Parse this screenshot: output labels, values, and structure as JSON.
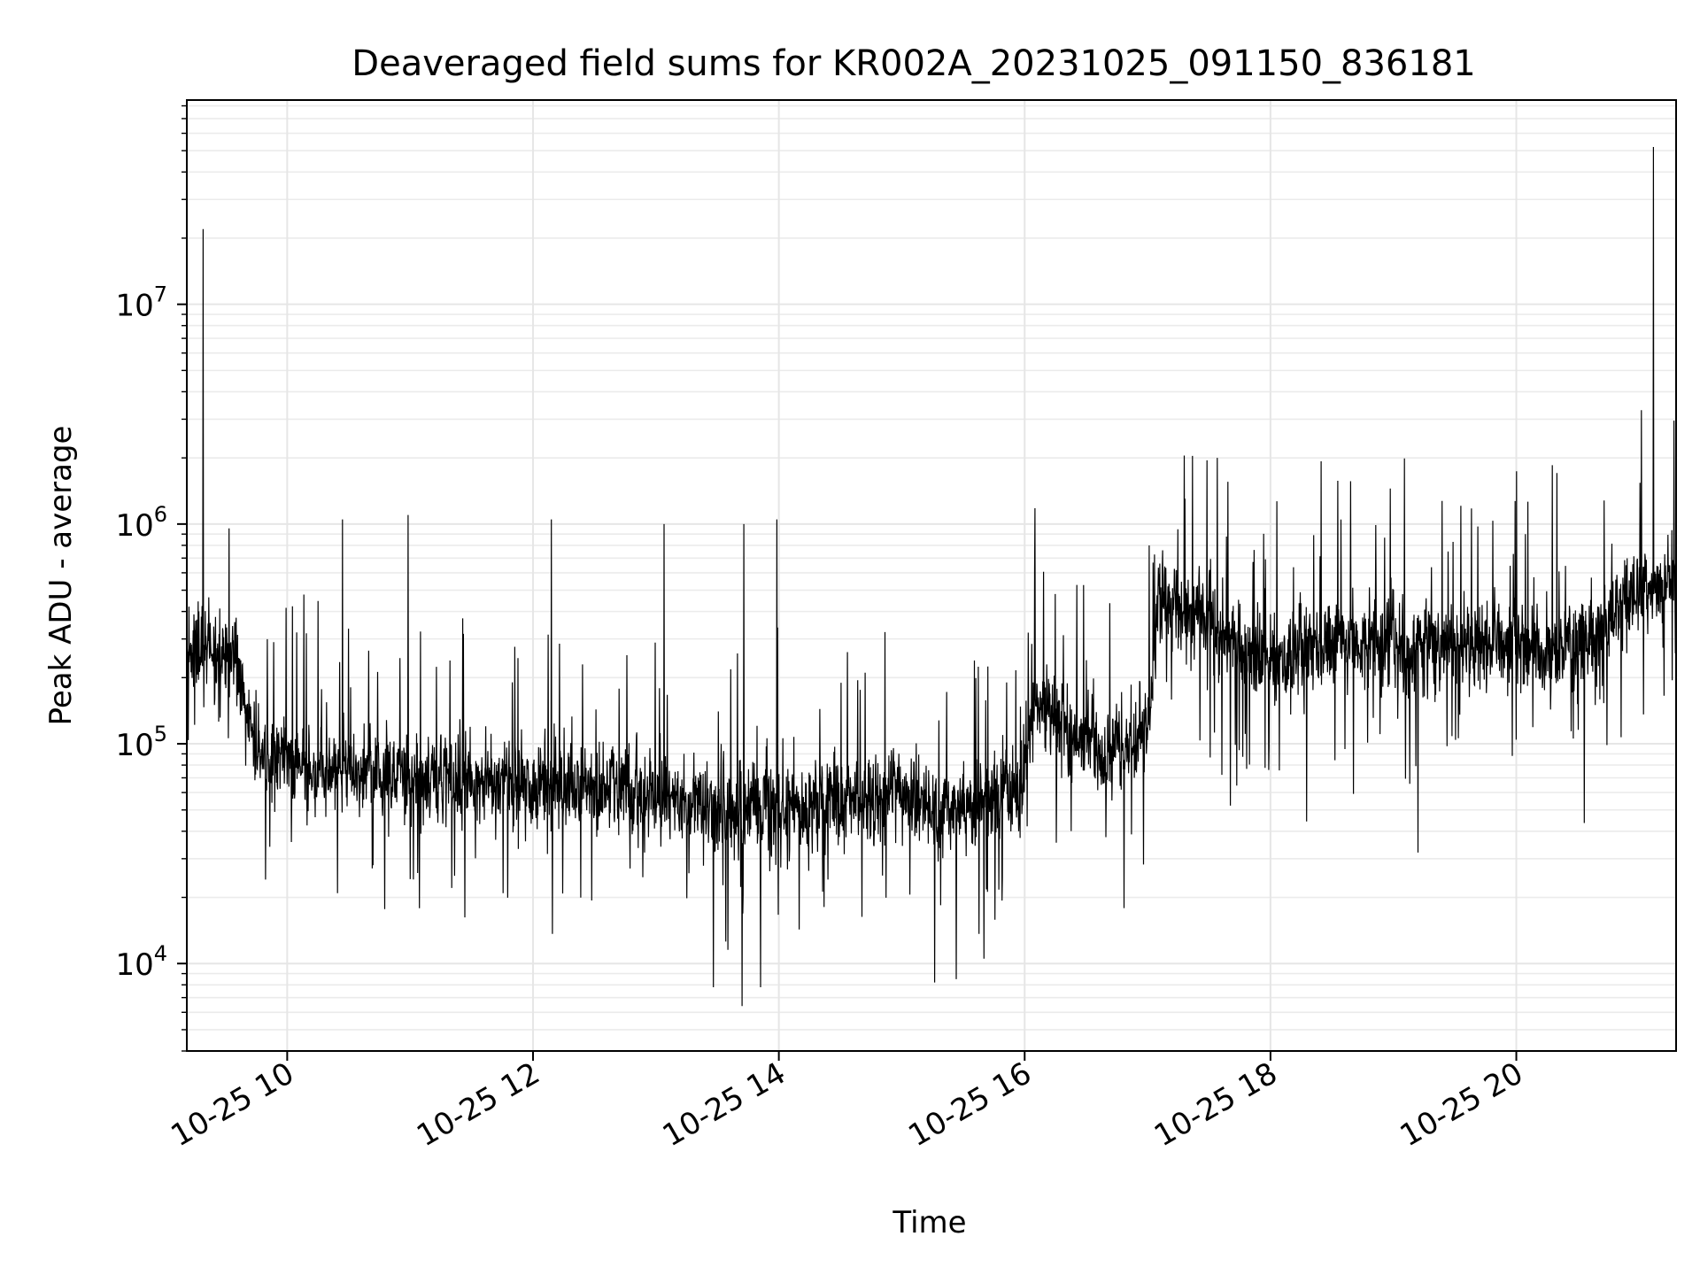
{
  "chart_data": {
    "type": "line",
    "title": "Deaveraged field sums for KR002A_20231025_091150_836181",
    "xlabel": "Time",
    "ylabel": "Peak ADU - average",
    "yscale": "log",
    "ylim": [
      4000,
      85000000
    ],
    "xlim": [
      "2023-10-25 09:11",
      "2023-10-25 21:18"
    ],
    "x_ticks": [
      {
        "value": "2023-10-25 10:00",
        "label": "10-25 10"
      },
      {
        "value": "2023-10-25 12:00",
        "label": "10-25 12"
      },
      {
        "value": "2023-10-25 14:00",
        "label": "10-25 14"
      },
      {
        "value": "2023-10-25 16:00",
        "label": "10-25 16"
      },
      {
        "value": "2023-10-25 18:00",
        "label": "10-25 18"
      },
      {
        "value": "2023-10-25 20:00",
        "label": "10-25 20"
      }
    ],
    "y_ticks": [
      {
        "value": 10000,
        "base": "10",
        "exp": "4"
      },
      {
        "value": 100000,
        "base": "10",
        "exp": "5"
      },
      {
        "value": 1000000,
        "base": "10",
        "exp": "6"
      },
      {
        "value": 10000000,
        "base": "10",
        "exp": "7"
      }
    ],
    "grid": true,
    "line_color": "#000000",
    "series": [
      {
        "baseline_x": [
          "2023-10-25 09:11",
          "2023-10-25 09:35",
          "2023-10-25 09:45",
          "2023-10-25 10:30",
          "2023-10-25 11:30",
          "2023-10-25 12:30",
          "2023-10-25 13:00",
          "2023-10-25 13:40",
          "2023-10-25 14:30",
          "2023-10-25 15:00",
          "2023-10-25 15:20",
          "2023-10-25 15:58",
          "2023-10-25 16:05",
          "2023-10-25 16:40",
          "2023-10-25 17:00",
          "2023-10-25 17:05",
          "2023-10-25 17:40",
          "2023-10-25 17:55",
          "2023-10-25 18:30",
          "2023-10-25 19:30",
          "2023-10-25 20:30",
          "2023-10-25 20:55",
          "2023-10-25 21:18"
        ],
        "baseline_y": [
          280000,
          250000,
          90000,
          75000,
          68000,
          62000,
          58000,
          50000,
          55000,
          60000,
          50000,
          60000,
          150000,
          90000,
          110000,
          450000,
          300000,
          230000,
          290000,
          280000,
          260000,
          480000,
          560000
        ],
        "spikes": [
          {
            "x": "2023-10-25 09:19",
            "y": 22000000
          },
          {
            "x": "2023-10-25 10:27",
            "y": 1050000
          },
          {
            "x": "2023-10-25 10:59",
            "y": 1100000
          },
          {
            "x": "2023-10-25 12:09",
            "y": 1050000
          },
          {
            "x": "2023-10-25 13:04",
            "y": 1000000
          },
          {
            "x": "2023-10-25 13:43",
            "y": 1000000
          },
          {
            "x": "2023-10-25 13:59",
            "y": 1050000
          },
          {
            "x": "2023-10-25 16:05",
            "y": 1180000
          },
          {
            "x": "2023-10-25 17:18",
            "y": 2050000
          },
          {
            "x": "2023-10-25 17:29",
            "y": 1950000
          },
          {
            "x": "2023-10-25 17:34",
            "y": 2000000
          },
          {
            "x": "2023-10-25 21:01",
            "y": 3300000
          },
          {
            "x": "2023-10-25 21:07",
            "y": 52000000
          }
        ],
        "dips": [
          {
            "x": "2023-10-25 13:28",
            "y": 7800
          },
          {
            "x": "2023-10-25 13:42",
            "y": 6400
          },
          {
            "x": "2023-10-25 13:51",
            "y": 7800
          },
          {
            "x": "2023-10-25 15:16",
            "y": 8200
          },
          {
            "x": "2023-10-25 19:12",
            "y": 32000
          }
        ]
      }
    ]
  }
}
